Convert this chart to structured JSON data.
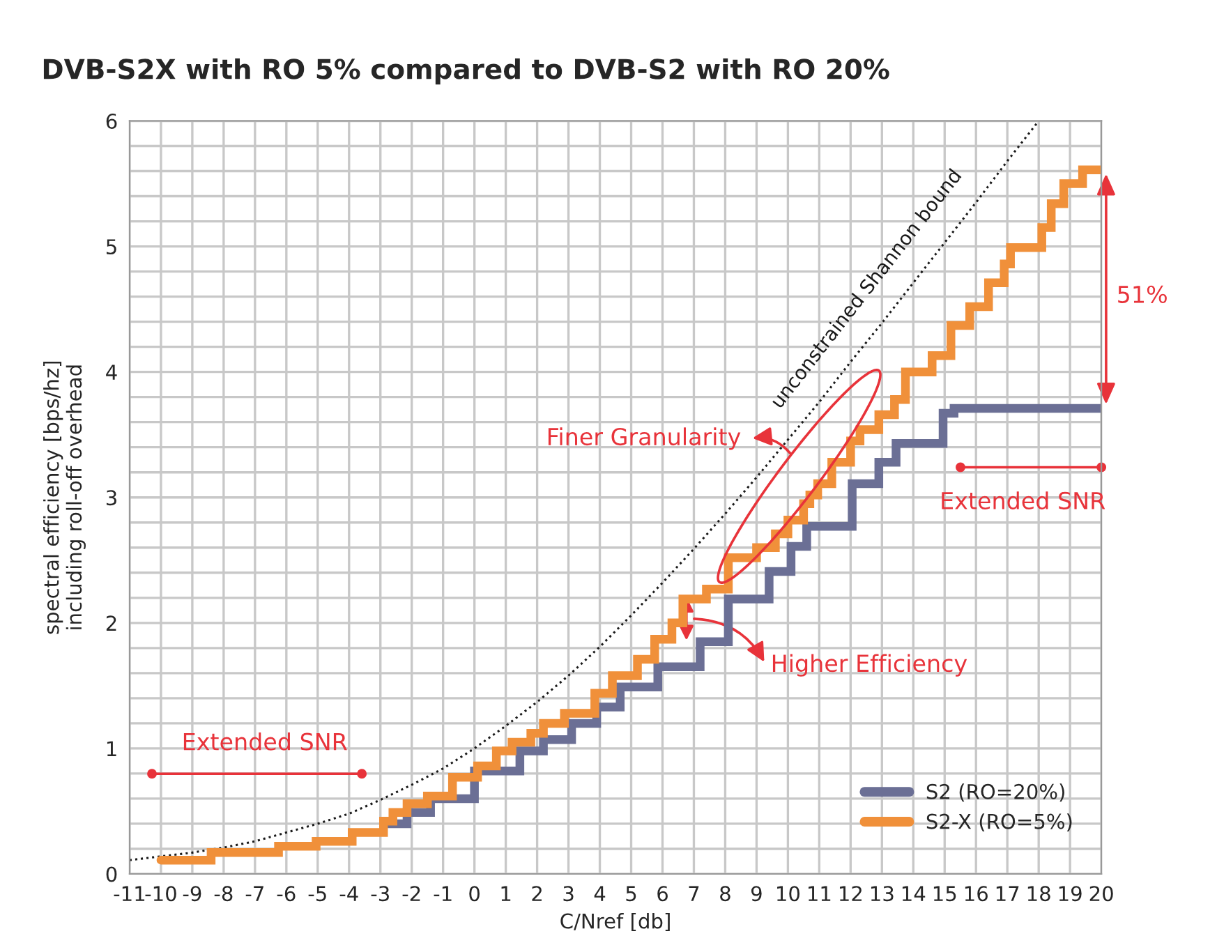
{
  "chart_data": {
    "type": "step",
    "title": "DVB-S2X with RO 5% compared to DVB-S2 with RO 20%",
    "xlabel": "C/Nref [db]",
    "ylabel": "spectral efficiency [bps/hz]\nincluding roll-off overhead",
    "xlim": [
      -11,
      20
    ],
    "ylim": [
      0,
      6
    ],
    "xticks": [
      -11,
      -10,
      -9,
      -8,
      -7,
      -6,
      -5,
      -4,
      -3,
      -2,
      -1,
      0,
      1,
      2,
      3,
      4,
      5,
      6,
      7,
      8,
      9,
      10,
      11,
      12,
      13,
      14,
      15,
      16,
      17,
      18,
      19,
      20
    ],
    "yticks": [
      0,
      {
        "value": 0.2,
        "label": null
      },
      {
        "value": 0.4,
        "label": null
      },
      {
        "value": 0.6,
        "label": null
      },
      {
        "value": 0.8,
        "label": null
      },
      1,
      {
        "value": 1.2,
        "label": null
      },
      {
        "value": 1.4,
        "label": null
      },
      {
        "value": 1.6,
        "label": null
      },
      {
        "value": 1.8,
        "label": null
      },
      2,
      {
        "value": 2.2,
        "label": null
      },
      {
        "value": 2.4,
        "label": null
      },
      {
        "value": 2.6,
        "label": null
      },
      {
        "value": 2.8,
        "label": null
      },
      3,
      {
        "value": 3.2,
        "label": null
      },
      {
        "value": 3.4,
        "label": null
      },
      {
        "value": 3.6,
        "label": null
      },
      {
        "value": 3.8,
        "label": null
      },
      4,
      {
        "value": 4.2,
        "label": null
      },
      {
        "value": 4.4,
        "label": null
      },
      {
        "value": 4.6,
        "label": null
      },
      {
        "value": 4.8,
        "label": null
      },
      5,
      {
        "value": 5.2,
        "label": null
      },
      {
        "value": 5.4,
        "label": null
      },
      {
        "value": 5.6,
        "label": null
      },
      {
        "value": 5.8,
        "label": null
      },
      6
    ],
    "grid": true,
    "legend": "bottom right",
    "series": [
      {
        "name": "unconstrained Shannon bound",
        "type": "line",
        "line_style": "dotted",
        "color": "#1a1a1a",
        "x": [
          -11,
          -10,
          -9,
          -8,
          -7,
          -6,
          -5,
          -4,
          -3,
          -2,
          -1,
          0,
          1,
          2,
          3,
          4,
          5,
          6,
          7,
          8,
          9,
          10,
          11,
          12,
          13,
          14,
          15,
          16,
          17,
          18
        ],
        "values": [
          0.11,
          0.14,
          0.17,
          0.21,
          0.26,
          0.33,
          0.4,
          0.48,
          0.59,
          0.71,
          0.84,
          1.0,
          1.18,
          1.37,
          1.58,
          1.81,
          2.06,
          2.32,
          2.59,
          2.87,
          3.16,
          3.46,
          3.76,
          4.08,
          4.39,
          4.71,
          5.03,
          5.35,
          5.68,
          6.0
        ]
      },
      {
        "name": "S2 (RO=20%)",
        "color": "#6b6f95",
        "x": [
          -2.9,
          -2.15,
          -1.4,
          0,
          1.45,
          2.2,
          3.1,
          3.9,
          4.65,
          5.85,
          7.2,
          8.1,
          9.4,
          10.1,
          10.6,
          12.05,
          12.9,
          13.45,
          14.95,
          15.3,
          20
        ],
        "values": [
          0.4,
          0.49,
          0.6,
          0.82,
          0.98,
          1.07,
          1.2,
          1.33,
          1.49,
          1.65,
          1.85,
          2.19,
          2.41,
          2.61,
          2.77,
          3.11,
          3.28,
          3.43,
          3.67,
          3.71,
          3.71
        ]
      },
      {
        "name": "S2-X (RO=5%)",
        "color": "#f0903a",
        "x": [
          -10.0,
          -8.4,
          -6.25,
          -5.05,
          -3.9,
          -2.9,
          -2.6,
          -2.15,
          -1.5,
          -0.7,
          0.1,
          0.7,
          1.2,
          1.8,
          2.2,
          2.87,
          3.84,
          4.4,
          5.2,
          5.75,
          6.3,
          6.65,
          7.4,
          8.1,
          9.0,
          9.6,
          10.0,
          10.5,
          10.7,
          10.95,
          11.4,
          12.0,
          12.3,
          12.9,
          13.4,
          13.75,
          14.6,
          15.2,
          15.8,
          16.4,
          16.9,
          17.1,
          18.1,
          18.4,
          18.8,
          19.4,
          20
        ],
        "values": [
          0.11,
          0.17,
          0.22,
          0.26,
          0.33,
          0.42,
          0.49,
          0.56,
          0.62,
          0.77,
          0.86,
          0.98,
          1.05,
          1.12,
          1.2,
          1.28,
          1.44,
          1.58,
          1.71,
          1.87,
          2.0,
          2.19,
          2.27,
          2.52,
          2.6,
          2.71,
          2.82,
          2.95,
          3.02,
          3.11,
          3.28,
          3.45,
          3.54,
          3.66,
          3.78,
          4.0,
          4.13,
          4.37,
          4.52,
          4.71,
          4.86,
          4.99,
          5.15,
          5.34,
          5.5,
          5.61,
          5.61
        ]
      }
    ],
    "annotations": [
      "Extended SNR",
      "Finer Granularity",
      "Higher Efficiency",
      "Extended SNR",
      "51%"
    ]
  }
}
